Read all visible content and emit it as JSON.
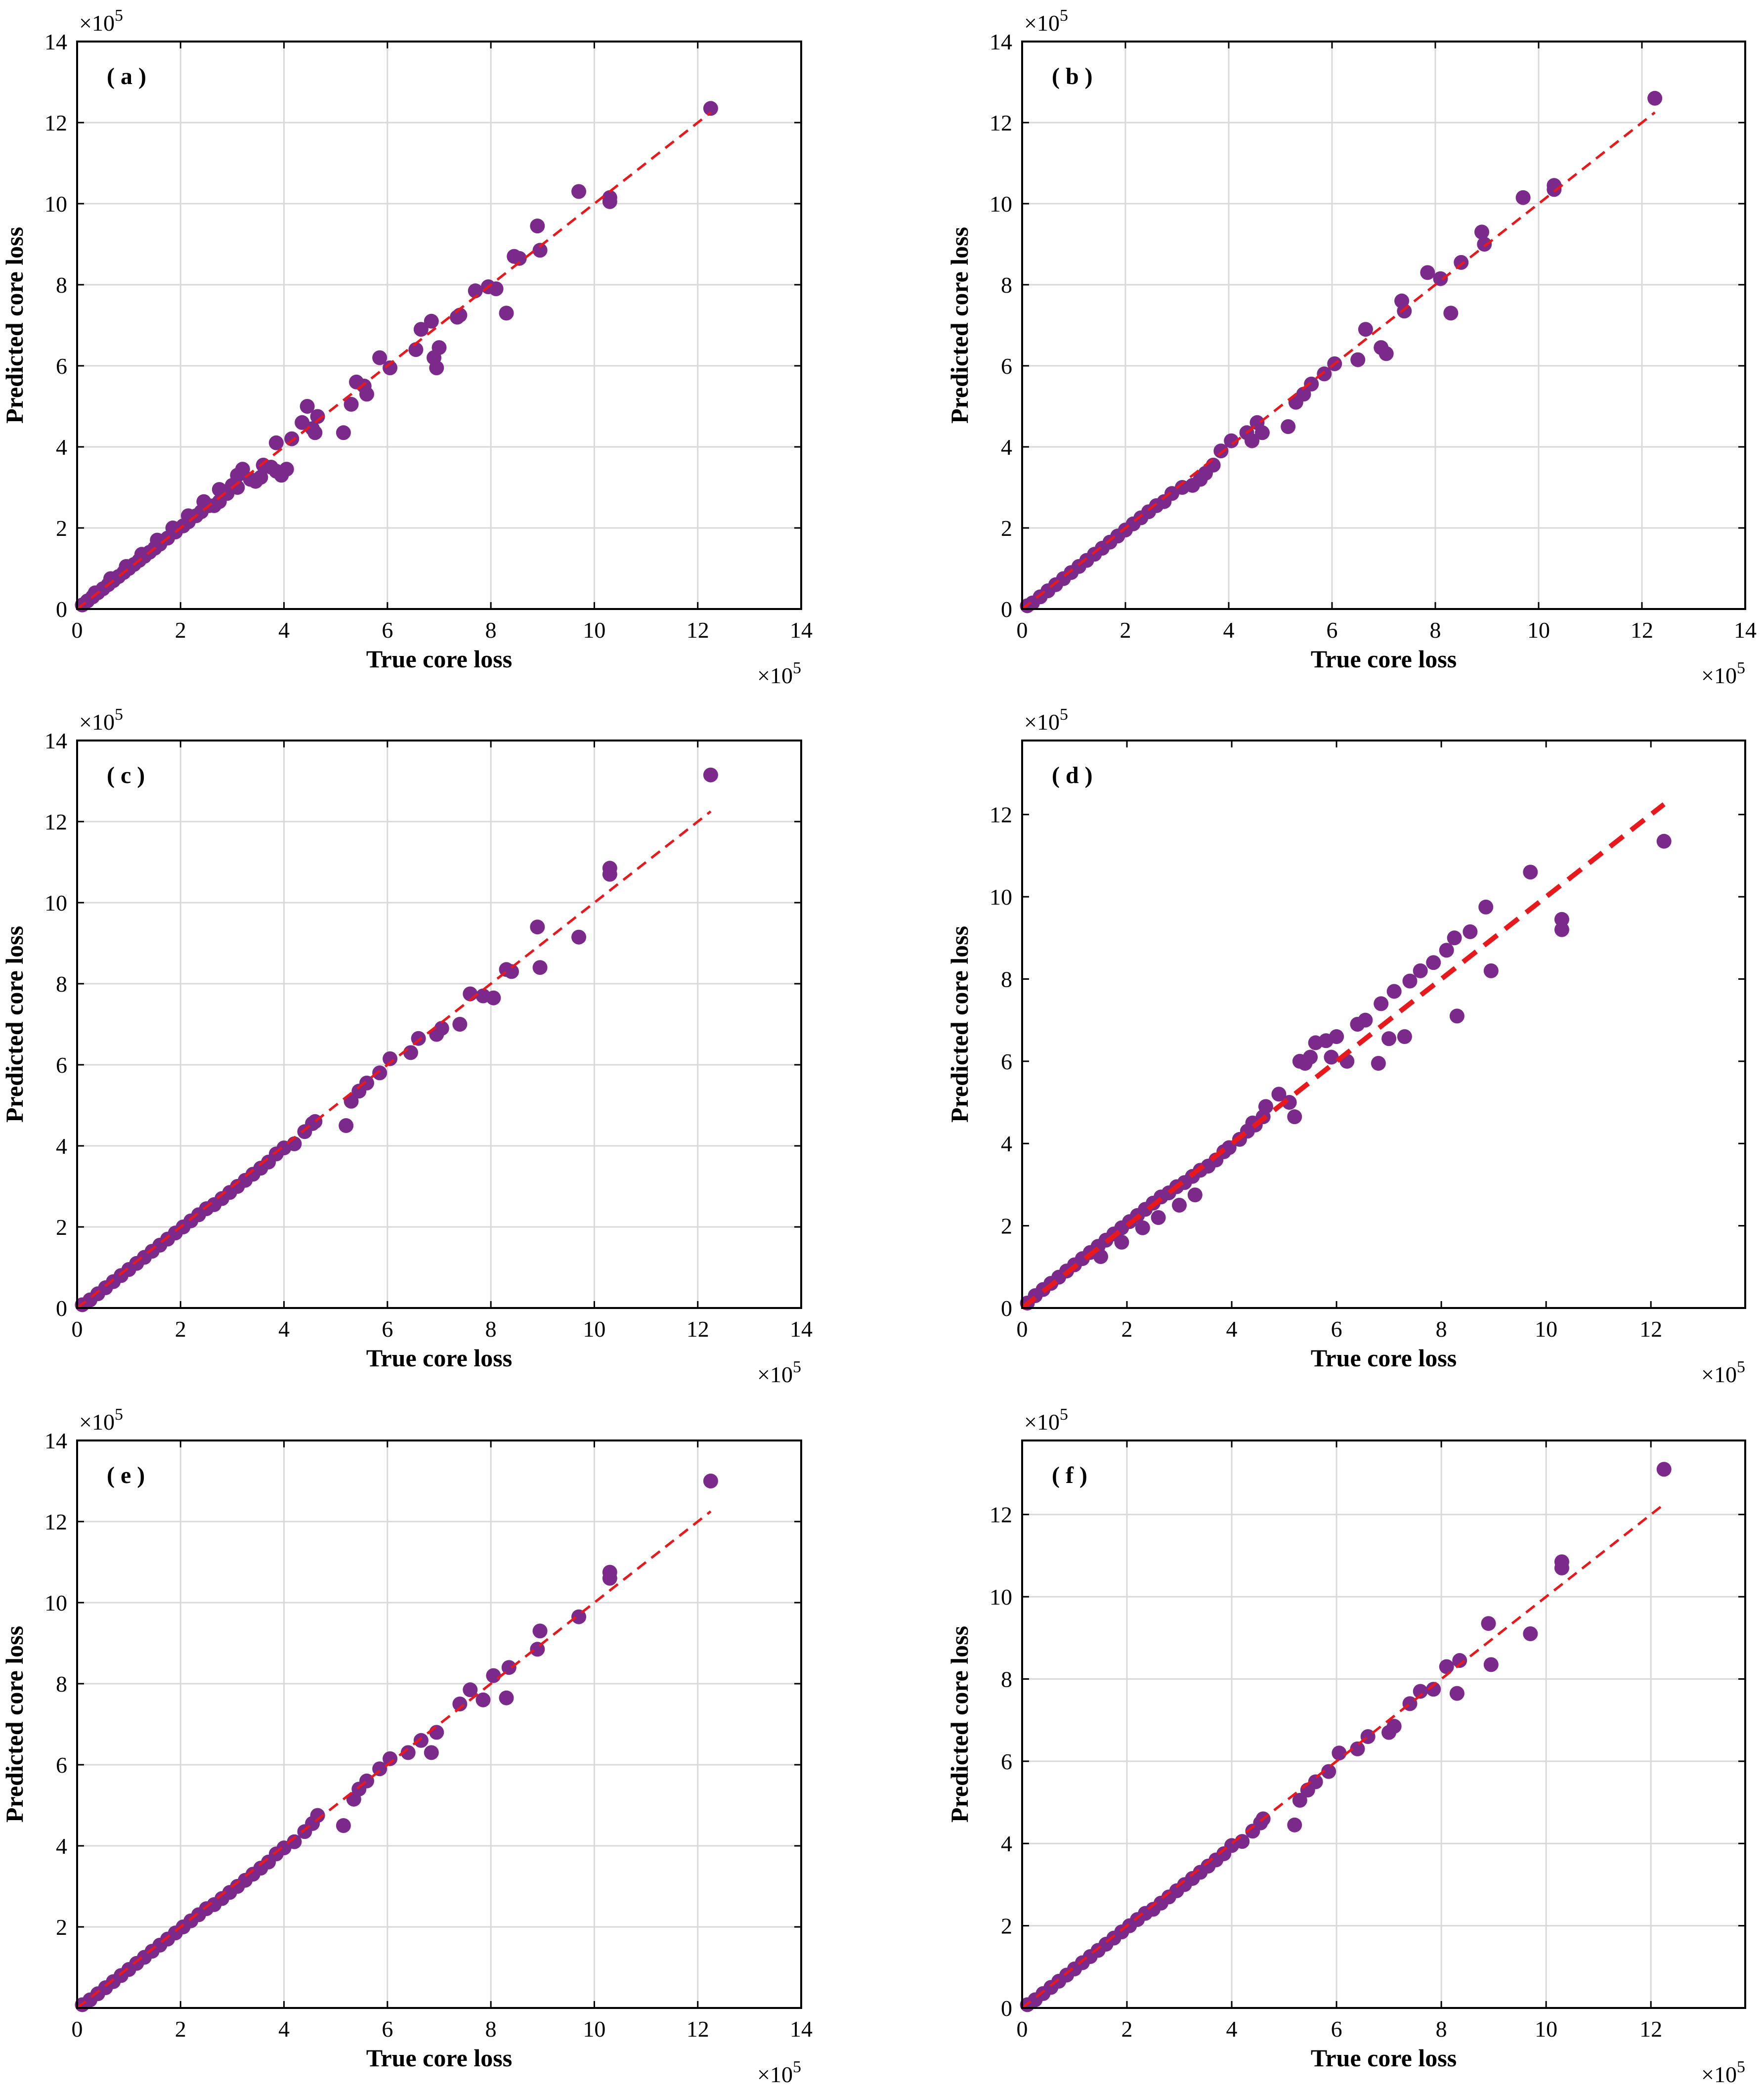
{
  "style": {
    "point_color": "#7b2a8c",
    "fit_line_color": "#e8191c",
    "grid_color": "#d9d9d9",
    "axis_color": "#000000"
  },
  "chart_data": [
    {
      "panel_label": "( a )",
      "type": "scatter",
      "xlabel": "True core loss",
      "ylabel": "Predicted core loss",
      "x_multiplier": "×10",
      "x_exponent": "5",
      "y_multiplier": "×10",
      "y_exponent": "5",
      "xlim": [
        0,
        14
      ],
      "ylim": [
        0,
        14
      ],
      "xticks": [
        0,
        2,
        4,
        6,
        8,
        10,
        12,
        14
      ],
      "yticks": [
        0,
        2,
        4,
        6,
        8,
        10,
        12,
        14
      ],
      "grid": true,
      "reference_line": {
        "x": [
          0,
          12.25
        ],
        "y": [
          0,
          12.25
        ]
      },
      "points": {
        "x": [
          12.25,
          10.3,
          10.3,
          9.7,
          8.95,
          8.9,
          8.55,
          8.45,
          8.3,
          8.1,
          7.95,
          7.7,
          7.4,
          7.35,
          7.0,
          6.95,
          6.9,
          6.85,
          6.65,
          6.55,
          6.05,
          5.85,
          5.6,
          5.55,
          5.4,
          5.3,
          5.15,
          4.65,
          4.55,
          4.6,
          4.45,
          4.35,
          4.15,
          4.05,
          3.95,
          3.85,
          3.75,
          3.6,
          3.55,
          3.45,
          3.35,
          3.2,
          3.0,
          3.1,
          2.9,
          2.75,
          2.65,
          2.55,
          2.4,
          2.3,
          2.15,
          2.05,
          1.9,
          1.75,
          1.6,
          1.5,
          1.4,
          1.3,
          1.2,
          1.1,
          1.0,
          0.9,
          0.8,
          0.7,
          0.6,
          0.5,
          0.4,
          0.3,
          0.2,
          0.1,
          3.85,
          3.1,
          2.75,
          2.45,
          2.15,
          1.85,
          1.55,
          1.25,
          0.95,
          0.65,
          0.35
        ],
        "y": [
          12.35,
          10.15,
          10.05,
          10.3,
          8.85,
          9.45,
          8.65,
          8.7,
          7.3,
          7.9,
          7.95,
          7.85,
          7.25,
          7.2,
          6.45,
          5.95,
          6.2,
          7.1,
          6.9,
          6.4,
          5.95,
          6.2,
          5.3,
          5.5,
          5.6,
          5.05,
          4.35,
          4.75,
          4.45,
          4.35,
          5.0,
          4.6,
          4.2,
          3.45,
          3.3,
          3.4,
          3.5,
          3.55,
          3.25,
          3.15,
          3.2,
          3.45,
          3.05,
          3.0,
          2.85,
          2.65,
          2.55,
          2.55,
          2.4,
          2.3,
          2.15,
          2.05,
          1.9,
          1.75,
          1.6,
          1.5,
          1.4,
          1.3,
          1.2,
          1.1,
          1.0,
          0.9,
          0.8,
          0.7,
          0.6,
          0.5,
          0.4,
          0.3,
          0.2,
          0.1,
          4.1,
          3.3,
          2.95,
          2.65,
          2.3,
          2.0,
          1.7,
          1.35,
          1.05,
          0.75,
          0.4
        ]
      }
    },
    {
      "panel_label": "( b )",
      "type": "scatter",
      "xlabel": "True core loss",
      "ylabel": "Predicted core loss",
      "x_multiplier": "×10",
      "x_exponent": "5",
      "y_multiplier": "×10",
      "y_exponent": "5",
      "xlim": [
        0,
        14
      ],
      "ylim": [
        0,
        14
      ],
      "xticks": [
        0,
        2,
        4,
        6,
        8,
        10,
        12,
        14
      ],
      "yticks": [
        0,
        2,
        4,
        6,
        8,
        10,
        12,
        14
      ],
      "grid": true,
      "reference_line": {
        "x": [
          0,
          12.25
        ],
        "y": [
          0,
          12.25
        ]
      },
      "points": {
        "x": [
          12.25,
          10.3,
          10.3,
          9.7,
          8.95,
          8.9,
          8.5,
          8.3,
          8.1,
          7.85,
          7.4,
          7.35,
          7.05,
          6.95,
          6.65,
          6.5,
          6.05,
          5.85,
          5.6,
          5.45,
          5.3,
          5.15,
          4.65,
          4.55,
          4.45,
          4.35,
          4.05,
          3.85,
          3.7,
          3.55,
          3.45,
          3.3,
          3.1,
          2.9,
          2.75,
          2.6,
          2.45,
          2.3,
          2.15,
          2.0,
          1.85,
          1.7,
          1.55,
          1.4,
          1.25,
          1.1,
          0.95,
          0.8,
          0.65,
          0.5,
          0.35,
          0.2,
          0.1
        ],
        "y": [
          12.6,
          10.45,
          10.35,
          10.15,
          9.0,
          9.3,
          8.55,
          7.3,
          8.15,
          8.3,
          7.35,
          7.6,
          6.3,
          6.45,
          6.9,
          6.15,
          6.05,
          5.8,
          5.55,
          5.3,
          5.1,
          4.5,
          4.35,
          4.6,
          4.15,
          4.35,
          4.15,
          3.9,
          3.55,
          3.35,
          3.2,
          3.05,
          3.0,
          2.85,
          2.65,
          2.55,
          2.4,
          2.25,
          2.1,
          1.95,
          1.8,
          1.65,
          1.5,
          1.35,
          1.2,
          1.05,
          0.9,
          0.75,
          0.6,
          0.45,
          0.3,
          0.15,
          0.08
        ]
      }
    },
    {
      "panel_label": "( c )",
      "type": "scatter",
      "xlabel": "True core loss",
      "ylabel": "Predicted core loss",
      "x_multiplier": "×10",
      "x_exponent": "5",
      "y_multiplier": "×10",
      "y_exponent": "5",
      "xlim": [
        0,
        14
      ],
      "ylim": [
        0,
        14
      ],
      "xticks": [
        0,
        2,
        4,
        6,
        8,
        10,
        12,
        14
      ],
      "yticks": [
        0,
        2,
        4,
        6,
        8,
        10,
        12,
        14
      ],
      "grid": true,
      "reference_line": {
        "x": [
          0,
          12.25
        ],
        "y": [
          0,
          12.25
        ]
      },
      "points": {
        "x": [
          12.25,
          10.3,
          10.3,
          9.7,
          8.95,
          8.9,
          8.4,
          8.3,
          8.05,
          7.85,
          7.6,
          7.4,
          7.05,
          6.95,
          6.6,
          6.45,
          6.05,
          5.85,
          5.6,
          5.45,
          5.3,
          5.2,
          4.6,
          4.55,
          4.4,
          4.2,
          4.0,
          3.85,
          3.7,
          3.55,
          3.4,
          3.25,
          3.1,
          2.95,
          2.8,
          2.65,
          2.5,
          2.35,
          2.2,
          2.05,
          1.9,
          1.75,
          1.6,
          1.45,
          1.3,
          1.15,
          1.0,
          0.85,
          0.7,
          0.55,
          0.4,
          0.25,
          0.1
        ],
        "y": [
          13.15,
          10.85,
          10.7,
          9.15,
          8.4,
          9.4,
          8.3,
          8.35,
          7.65,
          7.7,
          7.75,
          7.0,
          6.9,
          6.75,
          6.65,
          6.3,
          6.15,
          5.8,
          5.55,
          5.35,
          5.1,
          4.5,
          4.6,
          4.55,
          4.35,
          4.05,
          3.95,
          3.8,
          3.6,
          3.45,
          3.3,
          3.15,
          3.0,
          2.85,
          2.7,
          2.55,
          2.45,
          2.3,
          2.15,
          2.0,
          1.85,
          1.7,
          1.55,
          1.4,
          1.25,
          1.1,
          0.95,
          0.8,
          0.65,
          0.5,
          0.35,
          0.2,
          0.08
        ]
      }
    },
    {
      "panel_label": "( d )",
      "type": "scatter",
      "xlabel": "True core loss",
      "ylabel": "Predicted core loss",
      "x_multiplier": "×10",
      "x_exponent": "5",
      "y_multiplier": "×10",
      "y_exponent": "5",
      "xlim": [
        0,
        13.8
      ],
      "ylim": [
        0,
        13.8
      ],
      "xticks": [
        0,
        2,
        4,
        6,
        8,
        10,
        12
      ],
      "yticks": [
        0,
        2,
        4,
        6,
        8,
        10,
        12
      ],
      "grid": false,
      "reference_line": {
        "x": [
          0,
          12.25
        ],
        "y": [
          0,
          12.25
        ]
      },
      "points": {
        "x": [
          12.25,
          10.3,
          10.3,
          9.7,
          8.95,
          8.85,
          8.55,
          8.3,
          8.25,
          8.1,
          7.85,
          7.6,
          7.4,
          7.3,
          7.1,
          7.0,
          6.85,
          6.8,
          6.55,
          6.4,
          6.2,
          6.0,
          5.8,
          5.9,
          5.6,
          5.5,
          5.4,
          5.3,
          5.1,
          5.2,
          4.9,
          4.65,
          4.45,
          4.6,
          4.3,
          4.4,
          4.15,
          3.95,
          3.85,
          3.7,
          3.55,
          3.4,
          3.25,
          3.1,
          2.95,
          2.8,
          2.65,
          2.5,
          2.35,
          2.2,
          2.05,
          1.9,
          1.75,
          1.6,
          1.45,
          1.3,
          1.15,
          1.0,
          0.85,
          0.7,
          0.55,
          0.4,
          0.25,
          0.1,
          3.3,
          3.0,
          2.6,
          2.3,
          1.9,
          1.5
        ],
        "y": [
          11.35,
          9.45,
          9.2,
          10.6,
          8.2,
          9.75,
          9.15,
          7.1,
          9.0,
          8.7,
          8.4,
          8.2,
          7.95,
          6.6,
          7.7,
          6.55,
          7.4,
          5.95,
          7.0,
          6.9,
          6.0,
          6.6,
          6.5,
          6.1,
          6.45,
          6.1,
          5.95,
          6.0,
          5.0,
          4.65,
          5.2,
          4.9,
          4.45,
          4.65,
          4.3,
          4.5,
          4.1,
          3.9,
          3.8,
          3.6,
          3.45,
          3.35,
          3.2,
          3.05,
          2.95,
          2.8,
          2.7,
          2.55,
          2.4,
          2.25,
          2.1,
          1.95,
          1.8,
          1.65,
          1.5,
          1.35,
          1.2,
          1.05,
          0.9,
          0.75,
          0.6,
          0.45,
          0.3,
          0.12,
          2.75,
          2.5,
          2.2,
          1.95,
          1.6,
          1.25
        ]
      }
    },
    {
      "panel_label": "( e )",
      "type": "scatter",
      "xlabel": "True core loss",
      "ylabel": "Predicted core loss",
      "x_multiplier": "×10",
      "x_exponent": "5",
      "y_multiplier": "×10",
      "y_exponent": "5",
      "xlim": [
        0,
        14
      ],
      "ylim": [
        0,
        14
      ],
      "xticks": [
        0,
        2,
        4,
        6,
        8,
        10,
        12,
        14
      ],
      "yticks": [
        2,
        4,
        6,
        8,
        10,
        12,
        14
      ],
      "grid": true,
      "reference_line": {
        "x": [
          0,
          12.25
        ],
        "y": [
          0,
          12.25
        ]
      },
      "points": {
        "x": [
          12.25,
          10.3,
          10.3,
          9.7,
          8.95,
          8.9,
          8.35,
          8.3,
          8.05,
          7.85,
          7.6,
          7.4,
          6.95,
          6.85,
          6.65,
          6.4,
          6.05,
          5.85,
          5.6,
          5.45,
          5.35,
          5.15,
          4.65,
          4.55,
          4.4,
          4.2,
          4.0,
          3.85,
          3.7,
          3.55,
          3.4,
          3.25,
          3.1,
          2.95,
          2.8,
          2.65,
          2.5,
          2.35,
          2.2,
          2.05,
          1.9,
          1.75,
          1.6,
          1.45,
          1.3,
          1.15,
          1.0,
          0.85,
          0.7,
          0.55,
          0.4,
          0.25,
          0.1
        ],
        "y": [
          13.0,
          10.75,
          10.6,
          9.65,
          9.3,
          8.85,
          8.4,
          7.65,
          8.2,
          7.6,
          7.85,
          7.5,
          6.8,
          6.3,
          6.6,
          6.3,
          6.15,
          5.9,
          5.6,
          5.4,
          5.15,
          4.5,
          4.75,
          4.55,
          4.35,
          4.1,
          3.95,
          3.8,
          3.6,
          3.45,
          3.3,
          3.15,
          3.0,
          2.85,
          2.7,
          2.55,
          2.45,
          2.3,
          2.15,
          2.0,
          1.85,
          1.7,
          1.55,
          1.4,
          1.25,
          1.1,
          0.95,
          0.8,
          0.65,
          0.5,
          0.35,
          0.2,
          0.08
        ]
      }
    },
    {
      "panel_label": "( f )",
      "type": "scatter",
      "xlabel": "True core loss",
      "ylabel": "Predicted core loss",
      "x_multiplier": "×10",
      "x_exponent": "5",
      "y_multiplier": "×10",
      "y_exponent": "5",
      "xlim": [
        0,
        13.8
      ],
      "ylim": [
        0,
        13.8
      ],
      "xticks": [
        0,
        2,
        4,
        6,
        8,
        10,
        12
      ],
      "yticks": [
        0,
        2,
        4,
        6,
        8,
        10,
        12
      ],
      "grid": true,
      "reference_line": {
        "x": [
          0,
          12.25
        ],
        "y": [
          0,
          12.25
        ]
      },
      "points": {
        "x": [
          12.25,
          10.3,
          10.3,
          9.7,
          8.95,
          8.9,
          8.35,
          8.3,
          8.1,
          7.85,
          7.6,
          7.4,
          7.1,
          7.0,
          6.6,
          6.4,
          6.05,
          5.85,
          5.6,
          5.45,
          5.3,
          5.2,
          4.6,
          4.55,
          4.4,
          4.2,
          4.0,
          3.85,
          3.7,
          3.55,
          3.4,
          3.25,
          3.1,
          2.95,
          2.8,
          2.65,
          2.5,
          2.35,
          2.2,
          2.05,
          1.9,
          1.75,
          1.6,
          1.45,
          1.3,
          1.15,
          1.0,
          0.85,
          0.7,
          0.55,
          0.4,
          0.25,
          0.1
        ],
        "y": [
          13.1,
          10.85,
          10.7,
          9.1,
          8.35,
          9.35,
          8.45,
          7.65,
          8.3,
          7.75,
          7.7,
          7.4,
          6.85,
          6.7,
          6.6,
          6.3,
          6.2,
          5.75,
          5.5,
          5.3,
          5.05,
          4.45,
          4.6,
          4.5,
          4.3,
          4.05,
          3.95,
          3.75,
          3.6,
          3.45,
          3.3,
          3.15,
          3.0,
          2.85,
          2.7,
          2.55,
          2.4,
          2.3,
          2.15,
          2.0,
          1.85,
          1.7,
          1.55,
          1.4,
          1.25,
          1.1,
          0.95,
          0.8,
          0.65,
          0.5,
          0.35,
          0.2,
          0.08
        ]
      }
    }
  ]
}
